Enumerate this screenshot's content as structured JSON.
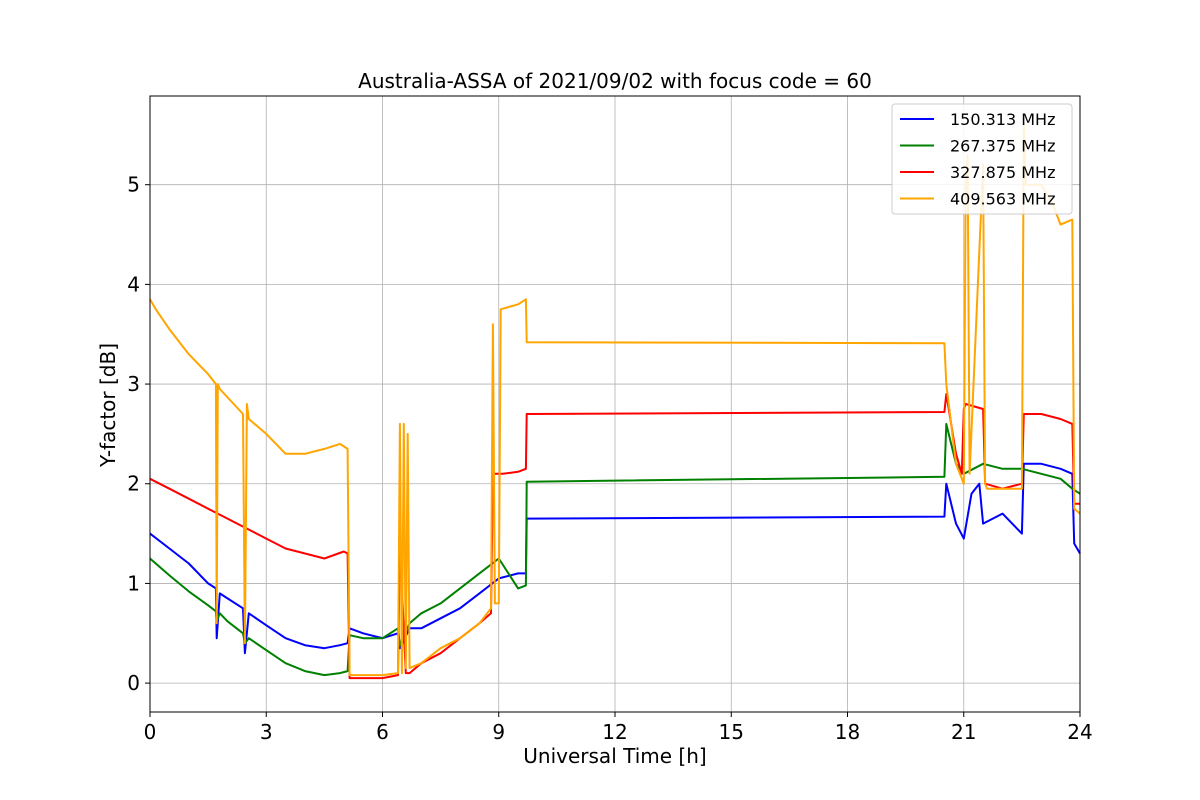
{
  "chart_data": {
    "type": "line",
    "title": "Australia-ASSA of 2021/09/02 with focus code = 60",
    "xlabel": "Universal Time [h]",
    "ylabel": "Y-factor [dB]",
    "xlim": [
      0,
      24
    ],
    "ylim": [
      -0.29,
      5.89
    ],
    "xticks": [
      0,
      3,
      6,
      9,
      12,
      15,
      18,
      21,
      24
    ],
    "yticks": [
      0,
      1,
      2,
      3,
      4,
      5
    ],
    "grid": true,
    "legend_position": "top-right",
    "series": [
      {
        "name": "150.313 MHz",
        "color": "#0000ff",
        "x": [
          0,
          0.5,
          1,
          1.5,
          1.7,
          1.72,
          1.8,
          2,
          2.4,
          2.45,
          2.55,
          3,
          3.5,
          4,
          4.5,
          4.9,
          5.1,
          5.15,
          5.5,
          6,
          6.4,
          6.45,
          6.7,
          7,
          7.5,
          8,
          8.5,
          9,
          9.5,
          9.7,
          9.72,
          20.5,
          20.55,
          20.8,
          21.0,
          21.2,
          21.4,
          21.5,
          22.0,
          22.5,
          22.55,
          23.0,
          23.5,
          23.8,
          23.85,
          24.0
        ],
        "y": [
          1.5,
          1.35,
          1.2,
          1.0,
          0.95,
          0.45,
          0.9,
          0.85,
          0.75,
          0.3,
          0.7,
          0.58,
          0.45,
          0.38,
          0.35,
          0.38,
          0.4,
          0.55,
          0.5,
          0.45,
          0.5,
          0.35,
          0.55,
          0.55,
          0.65,
          0.75,
          0.9,
          1.05,
          1.1,
          1.1,
          1.65,
          1.67,
          2.0,
          1.6,
          1.45,
          1.9,
          2.0,
          1.6,
          1.7,
          1.5,
          2.2,
          2.2,
          2.15,
          2.1,
          1.4,
          1.3
        ]
      },
      {
        "name": "267.375 MHz",
        "color": "#008000",
        "x": [
          0,
          0.5,
          1,
          1.5,
          1.7,
          1.72,
          1.8,
          2,
          2.4,
          2.45,
          2.55,
          3,
          3.5,
          4,
          4.5,
          4.9,
          5.1,
          5.15,
          5.5,
          6,
          6.4,
          6.45,
          6.7,
          7,
          7.5,
          8,
          8.5,
          9,
          9.5,
          9.7,
          9.72,
          20.5,
          20.55,
          20.8,
          21.0,
          21.5,
          22.0,
          22.5,
          23.0,
          23.5,
          23.8,
          24.0
        ],
        "y": [
          1.25,
          1.08,
          0.92,
          0.78,
          0.72,
          0.62,
          0.7,
          0.62,
          0.5,
          0.4,
          0.45,
          0.33,
          0.2,
          0.12,
          0.08,
          0.1,
          0.12,
          0.48,
          0.45,
          0.45,
          0.55,
          0.38,
          0.6,
          0.7,
          0.8,
          0.95,
          1.1,
          1.25,
          0.95,
          0.98,
          2.02,
          2.07,
          2.6,
          2.2,
          2.1,
          2.2,
          2.15,
          2.15,
          2.1,
          2.05,
          1.95,
          1.9
        ]
      },
      {
        "name": "327.875 MHz",
        "color": "#ff0000",
        "x": [
          0,
          0.5,
          1,
          1.5,
          2,
          2.5,
          3,
          3.5,
          4,
          4.5,
          5.0,
          5.1,
          5.15,
          5.5,
          6,
          6.4,
          6.45,
          6.6,
          6.7,
          7,
          7.5,
          8,
          8.5,
          8.8,
          8.85,
          9.1,
          9.5,
          9.7,
          9.72,
          20.5,
          20.55,
          20.8,
          20.95,
          21.0,
          21.05,
          21.5,
          21.55,
          22.0,
          22.5,
          22.55,
          23.0,
          23.5,
          23.8,
          23.85,
          24.0
        ],
        "y": [
          2.05,
          1.95,
          1.85,
          1.75,
          1.65,
          1.55,
          1.45,
          1.35,
          1.3,
          1.25,
          1.32,
          1.3,
          0.05,
          0.05,
          0.05,
          0.08,
          1.4,
          0.1,
          0.1,
          0.2,
          0.3,
          0.45,
          0.6,
          0.7,
          2.1,
          2.1,
          2.12,
          2.15,
          2.7,
          2.72,
          2.9,
          2.3,
          2.1,
          2.75,
          2.8,
          2.75,
          2.0,
          1.95,
          2.0,
          2.7,
          2.7,
          2.65,
          2.6,
          1.8,
          1.8
        ]
      },
      {
        "name": "409.563 MHz",
        "color": "#ffa500",
        "x": [
          0,
          0.15,
          0.5,
          1,
          1.5,
          1.7,
          1.72,
          1.75,
          1.8,
          2.4,
          2.45,
          2.5,
          2.55,
          3,
          3.5,
          4,
          4.5,
          4.9,
          5.1,
          5.15,
          5.5,
          6,
          6.4,
          6.45,
          6.5,
          6.55,
          6.6,
          6.65,
          6.7,
          7,
          7.5,
          8,
          8.5,
          8.8,
          8.85,
          8.9,
          9.0,
          9.05,
          9.5,
          9.7,
          9.72,
          20.5,
          20.55,
          20.8,
          21.0,
          21.05,
          21.1,
          21.15,
          21.5,
          21.55,
          21.6,
          22.5,
          22.55,
          22.6,
          23.0,
          23.3,
          23.5,
          23.8,
          23.85,
          24.0
        ],
        "y": [
          3.85,
          3.75,
          3.55,
          3.3,
          3.1,
          3.0,
          0.6,
          3.0,
          2.95,
          2.7,
          0.4,
          2.8,
          2.65,
          2.5,
          2.3,
          2.3,
          2.35,
          2.4,
          2.35,
          0.08,
          0.08,
          0.08,
          0.1,
          2.6,
          0.1,
          2.6,
          0.15,
          2.5,
          0.15,
          0.2,
          0.35,
          0.45,
          0.6,
          0.75,
          3.6,
          0.8,
          0.8,
          3.75,
          3.8,
          3.85,
          3.42,
          3.41,
          3.0,
          2.2,
          2.0,
          5.0,
          5.3,
          2.1,
          5.2,
          2.0,
          1.95,
          1.95,
          5.6,
          5.0,
          5.0,
          4.8,
          4.6,
          4.65,
          1.75,
          1.7
        ]
      }
    ]
  }
}
